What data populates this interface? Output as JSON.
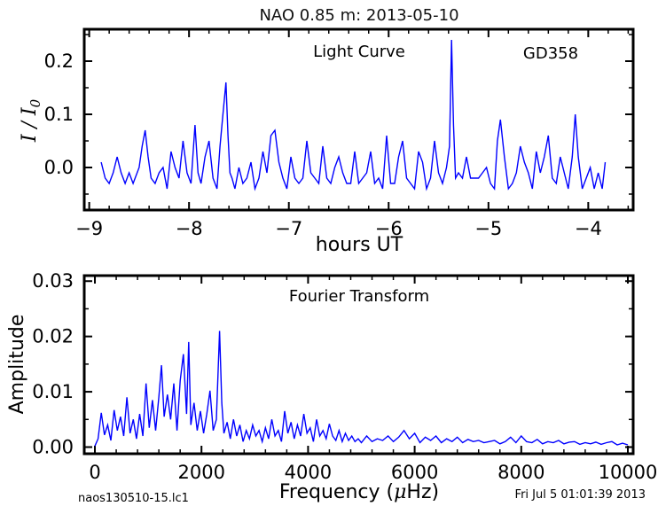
{
  "figure": {
    "title": "NAO 0.85 m:  2013-05-10",
    "footer_left": "naos130510-15.lc1",
    "footer_right": "Fri Jul  5 01:01:39 2013",
    "line_color": "#0000ff"
  },
  "chart_data": [
    {
      "type": "line",
      "title": "",
      "annotations": [
        "Light Curve",
        "GD358"
      ],
      "xlabel": "hours UT",
      "ylabel": "I / I0",
      "xlim": [
        -9.05,
        -3.55
      ],
      "ylim": [
        -0.08,
        0.26
      ],
      "xticks": [
        -9,
        -8,
        -7,
        -6,
        -5,
        -4
      ],
      "xtick_labels": [
        "−9",
        "−8",
        "−7",
        "−6",
        "−5",
        "−4"
      ],
      "yticks": [
        0.0,
        0.1,
        0.2
      ],
      "ytick_labels": [
        "0.0",
        "0.1",
        "0.2"
      ],
      "grid": false,
      "series": [
        {
          "x": [
            -8.88,
            -8.84,
            -8.8,
            -8.76,
            -8.72,
            -8.68,
            -8.64,
            -8.6,
            -8.56,
            -8.5,
            -8.47,
            -8.44,
            -8.41,
            -8.38,
            -8.34,
            -8.3,
            -8.26,
            -8.22,
            -8.18,
            -8.14,
            -8.1,
            -8.06,
            -8.02,
            -7.98,
            -7.94,
            -7.91,
            -7.88,
            -7.84,
            -7.8,
            -7.76,
            -7.72,
            -7.69,
            -7.66,
            -7.63,
            -7.61,
            -7.59,
            -7.57,
            -7.54,
            -7.5,
            -7.46,
            -7.42,
            -7.38,
            -7.34,
            -7.3,
            -7.26,
            -7.22,
            -7.18,
            -7.14,
            -7.1,
            -7.06,
            -7.02,
            -6.98,
            -6.94,
            -6.9,
            -6.86,
            -6.82,
            -6.78,
            -6.74,
            -6.7,
            -6.66,
            -6.62,
            -6.58,
            -6.54,
            -6.5,
            -6.46,
            -6.42,
            -6.38,
            -6.34,
            -6.3,
            -6.26,
            -6.22,
            -6.18,
            -6.14,
            -6.1,
            -6.06,
            -6.02,
            -5.98,
            -5.94,
            -5.9,
            -5.86,
            -5.82,
            -5.78,
            -5.74,
            -5.7,
            -5.66,
            -5.62,
            -5.58,
            -5.54,
            -5.5,
            -5.46,
            -5.42,
            -5.39,
            -5.37,
            -5.35,
            -5.33,
            -5.3,
            -5.26,
            -5.22,
            -5.18,
            -5.14,
            -5.1,
            -5.06,
            -5.02,
            -4.98,
            -4.94,
            -4.91,
            -4.88,
            -4.84,
            -4.8,
            -4.76,
            -4.72,
            -4.68,
            -4.64,
            -4.6,
            -4.56,
            -4.52,
            -4.48,
            -4.44,
            -4.4,
            -4.36,
            -4.32,
            -4.28,
            -4.24,
            -4.2,
            -4.16,
            -4.13,
            -4.1,
            -4.06,
            -4.02,
            -3.98,
            -3.94,
            -3.9,
            -3.86,
            -3.83
          ],
          "y": [
            0.01,
            -0.02,
            -0.03,
            -0.01,
            0.02,
            -0.01,
            -0.03,
            -0.01,
            -0.03,
            0.0,
            0.04,
            0.07,
            0.02,
            -0.02,
            -0.03,
            -0.01,
            0.0,
            -0.04,
            0.03,
            0.0,
            -0.02,
            0.05,
            -0.01,
            -0.03,
            0.08,
            -0.01,
            -0.03,
            0.02,
            0.05,
            -0.02,
            -0.04,
            0.04,
            0.1,
            0.16,
            0.06,
            -0.01,
            -0.02,
            -0.04,
            0.0,
            -0.03,
            -0.02,
            0.01,
            -0.04,
            -0.02,
            0.03,
            -0.01,
            0.06,
            0.07,
            0.01,
            -0.02,
            -0.04,
            0.02,
            -0.02,
            -0.03,
            -0.02,
            0.05,
            -0.01,
            -0.02,
            -0.03,
            0.04,
            -0.02,
            -0.03,
            0.0,
            0.02,
            -0.01,
            -0.03,
            -0.03,
            0.03,
            -0.03,
            -0.02,
            -0.01,
            0.03,
            -0.03,
            -0.02,
            -0.04,
            0.06,
            -0.03,
            -0.03,
            0.02,
            0.05,
            -0.02,
            -0.03,
            -0.04,
            0.03,
            0.01,
            -0.04,
            -0.02,
            0.05,
            -0.01,
            -0.03,
            0.0,
            0.04,
            0.24,
            0.08,
            -0.02,
            -0.01,
            -0.02,
            0.02,
            -0.02,
            -0.02,
            -0.02,
            -0.01,
            0.0,
            -0.03,
            -0.04,
            0.05,
            0.09,
            0.02,
            -0.04,
            -0.03,
            -0.01,
            0.04,
            0.01,
            -0.01,
            -0.04,
            0.03,
            -0.01,
            0.02,
            0.06,
            -0.02,
            -0.03,
            0.02,
            -0.01,
            -0.04,
            0.02,
            0.1,
            0.02,
            -0.04,
            -0.02,
            0.0,
            -0.04,
            -0.01,
            -0.04,
            0.01
          ]
        }
      ]
    },
    {
      "type": "line",
      "title": "",
      "annotations": [
        "Fourier Transform"
      ],
      "xlabel": "Frequency (μHz)",
      "ylabel": "Amplitude",
      "xlim": [
        -200,
        10100
      ],
      "ylim": [
        -0.0012,
        0.031
      ],
      "xticks": [
        0,
        2000,
        4000,
        6000,
        8000,
        10000
      ],
      "xtick_labels": [
        "0",
        "2000",
        "4000",
        "6000",
        "8000",
        "10000"
      ],
      "yticks": [
        0.0,
        0.01,
        0.02,
        0.03
      ],
      "ytick_labels": [
        "0.00",
        "0.01",
        "0.02",
        "0.03"
      ],
      "grid": false,
      "series": [
        {
          "x": [
            0,
            60,
            120,
            180,
            240,
            300,
            360,
            420,
            480,
            540,
            600,
            660,
            720,
            780,
            840,
            900,
            960,
            1020,
            1080,
            1140,
            1200,
            1250,
            1300,
            1360,
            1420,
            1480,
            1540,
            1600,
            1660,
            1720,
            1760,
            1800,
            1860,
            1920,
            1980,
            2040,
            2100,
            2160,
            2220,
            2280,
            2340,
            2380,
            2420,
            2480,
            2540,
            2600,
            2660,
            2720,
            2780,
            2840,
            2900,
            2960,
            3020,
            3080,
            3140,
            3200,
            3260,
            3320,
            3380,
            3440,
            3500,
            3560,
            3620,
            3680,
            3740,
            3800,
            3860,
            3920,
            3980,
            4040,
            4100,
            4160,
            4220,
            4280,
            4340,
            4400,
            4460,
            4520,
            4580,
            4640,
            4700,
            4760,
            4820,
            4880,
            4940,
            5000,
            5100,
            5200,
            5300,
            5400,
            5500,
            5600,
            5700,
            5800,
            5900,
            6000,
            6100,
            6200,
            6300,
            6400,
            6500,
            6600,
            6700,
            6800,
            6900,
            7000,
            7100,
            7200,
            7300,
            7400,
            7500,
            7600,
            7700,
            7800,
            7900,
            8000,
            8100,
            8200,
            8300,
            8400,
            8500,
            8600,
            8700,
            8800,
            8900,
            9000,
            9100,
            9200,
            9300,
            9400,
            9500,
            9600,
            9700,
            9800,
            9900,
            10000
          ],
          "y": [
            0.0002,
            0.0015,
            0.0062,
            0.0022,
            0.004,
            0.0012,
            0.0067,
            0.003,
            0.0055,
            0.002,
            0.009,
            0.0025,
            0.005,
            0.0015,
            0.006,
            0.002,
            0.0115,
            0.0035,
            0.0085,
            0.003,
            0.009,
            0.0148,
            0.0055,
            0.0095,
            0.005,
            0.0115,
            0.003,
            0.012,
            0.0168,
            0.006,
            0.019,
            0.004,
            0.008,
            0.003,
            0.0065,
            0.0025,
            0.006,
            0.0102,
            0.003,
            0.005,
            0.021,
            0.008,
            0.0025,
            0.0045,
            0.0015,
            0.005,
            0.002,
            0.004,
            0.001,
            0.003,
            0.0015,
            0.004,
            0.002,
            0.003,
            0.001,
            0.0035,
            0.0015,
            0.005,
            0.002,
            0.003,
            0.001,
            0.0065,
            0.0025,
            0.0045,
            0.0015,
            0.004,
            0.002,
            0.006,
            0.0025,
            0.0035,
            0.001,
            0.005,
            0.002,
            0.003,
            0.0015,
            0.0042,
            0.002,
            0.0012,
            0.003,
            0.001,
            0.0025,
            0.0012,
            0.002,
            0.001,
            0.0015,
            0.0008,
            0.002,
            0.001,
            0.0015,
            0.0012,
            0.002,
            0.001,
            0.0018,
            0.003,
            0.0015,
            0.0025,
            0.0008,
            0.0018,
            0.0012,
            0.002,
            0.0008,
            0.0015,
            0.001,
            0.0018,
            0.0008,
            0.0014,
            0.001,
            0.0012,
            0.0008,
            0.001,
            0.0012,
            0.0006,
            0.001,
            0.0018,
            0.0008,
            0.002,
            0.001,
            0.0008,
            0.0014,
            0.0006,
            0.001,
            0.0008,
            0.0012,
            0.0006,
            0.0009,
            0.001,
            0.0005,
            0.0008,
            0.0006,
            0.0009,
            0.0005,
            0.0008,
            0.001,
            0.0004,
            0.0007,
            0.0004
          ]
        }
      ]
    }
  ]
}
